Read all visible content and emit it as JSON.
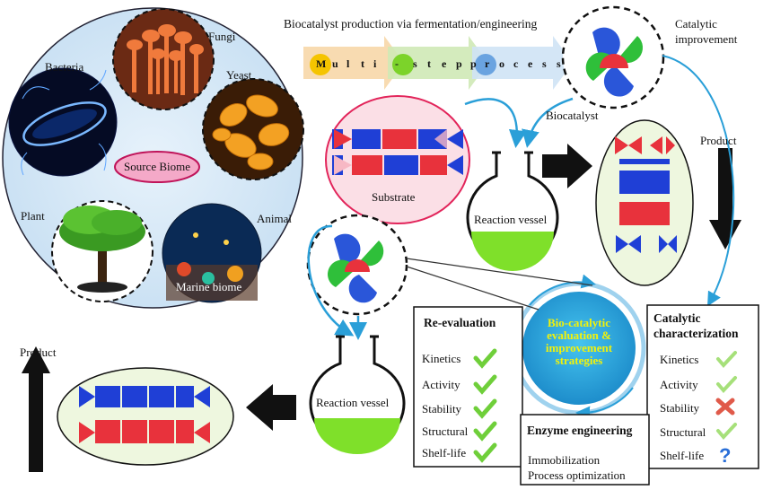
{
  "header": {
    "production_title": "Biocatalyst production via fermentation/engineering",
    "process_letters": [
      "M",
      "u",
      "l",
      "t",
      "i",
      "-",
      "s",
      "t",
      "e",
      "p",
      "p",
      "r",
      "o",
      "c",
      "e",
      "s",
      "s"
    ],
    "catalytic_improvement_line1": "Catalytic",
    "catalytic_improvement_line2": "improvement"
  },
  "source_biome": {
    "center_label": "Source Biome",
    "sources": {
      "fungi": "Fungi",
      "bacteria": "Bacteria",
      "yeast": "Yeast",
      "plant": "Plant",
      "animal": "Animal",
      "marine": "Marine biome"
    }
  },
  "labels": {
    "substrate": "Substrate",
    "biocatalyst": "Biocatalyst",
    "reaction_vessel_top": "Reaction vessel",
    "reaction_vessel_bottom": "Reaction vessel",
    "product_right": "Product",
    "product_left": "Product"
  },
  "center": {
    "line1": "Bio-catalytic",
    "line2": "evaluation &",
    "line3": "improvement",
    "line4": "strategies"
  },
  "reevaluation": {
    "title": "Re-evaluation",
    "items": [
      {
        "label": "Kinetics",
        "status": "check"
      },
      {
        "label": "Activity",
        "status": "check"
      },
      {
        "label": "Stability",
        "status": "check"
      },
      {
        "label": "Structural",
        "status": "check"
      },
      {
        "label": "Shelf-life",
        "status": "check"
      }
    ]
  },
  "characterization": {
    "title_line1": "Catalytic",
    "title_line2": "characterization",
    "items": [
      {
        "label": "Kinetics",
        "status": "check"
      },
      {
        "label": "Activity",
        "status": "check"
      },
      {
        "label": "Stability",
        "status": "cross"
      },
      {
        "label": "Structural",
        "status": "check"
      },
      {
        "label": "Shelf-life",
        "status": "question"
      }
    ]
  },
  "engineering": {
    "title": "Enzyme engineering",
    "line1": "Immobilization",
    "line2": "Process optimization"
  },
  "colors": {
    "blue": "#1f3fd6",
    "red": "#e8323c",
    "pink": "#f7b8c4",
    "green_fill": "#7fe02a",
    "pale_green": "#eef7df",
    "cyan": "#2a9fd8",
    "check": "#6fcf3a"
  }
}
